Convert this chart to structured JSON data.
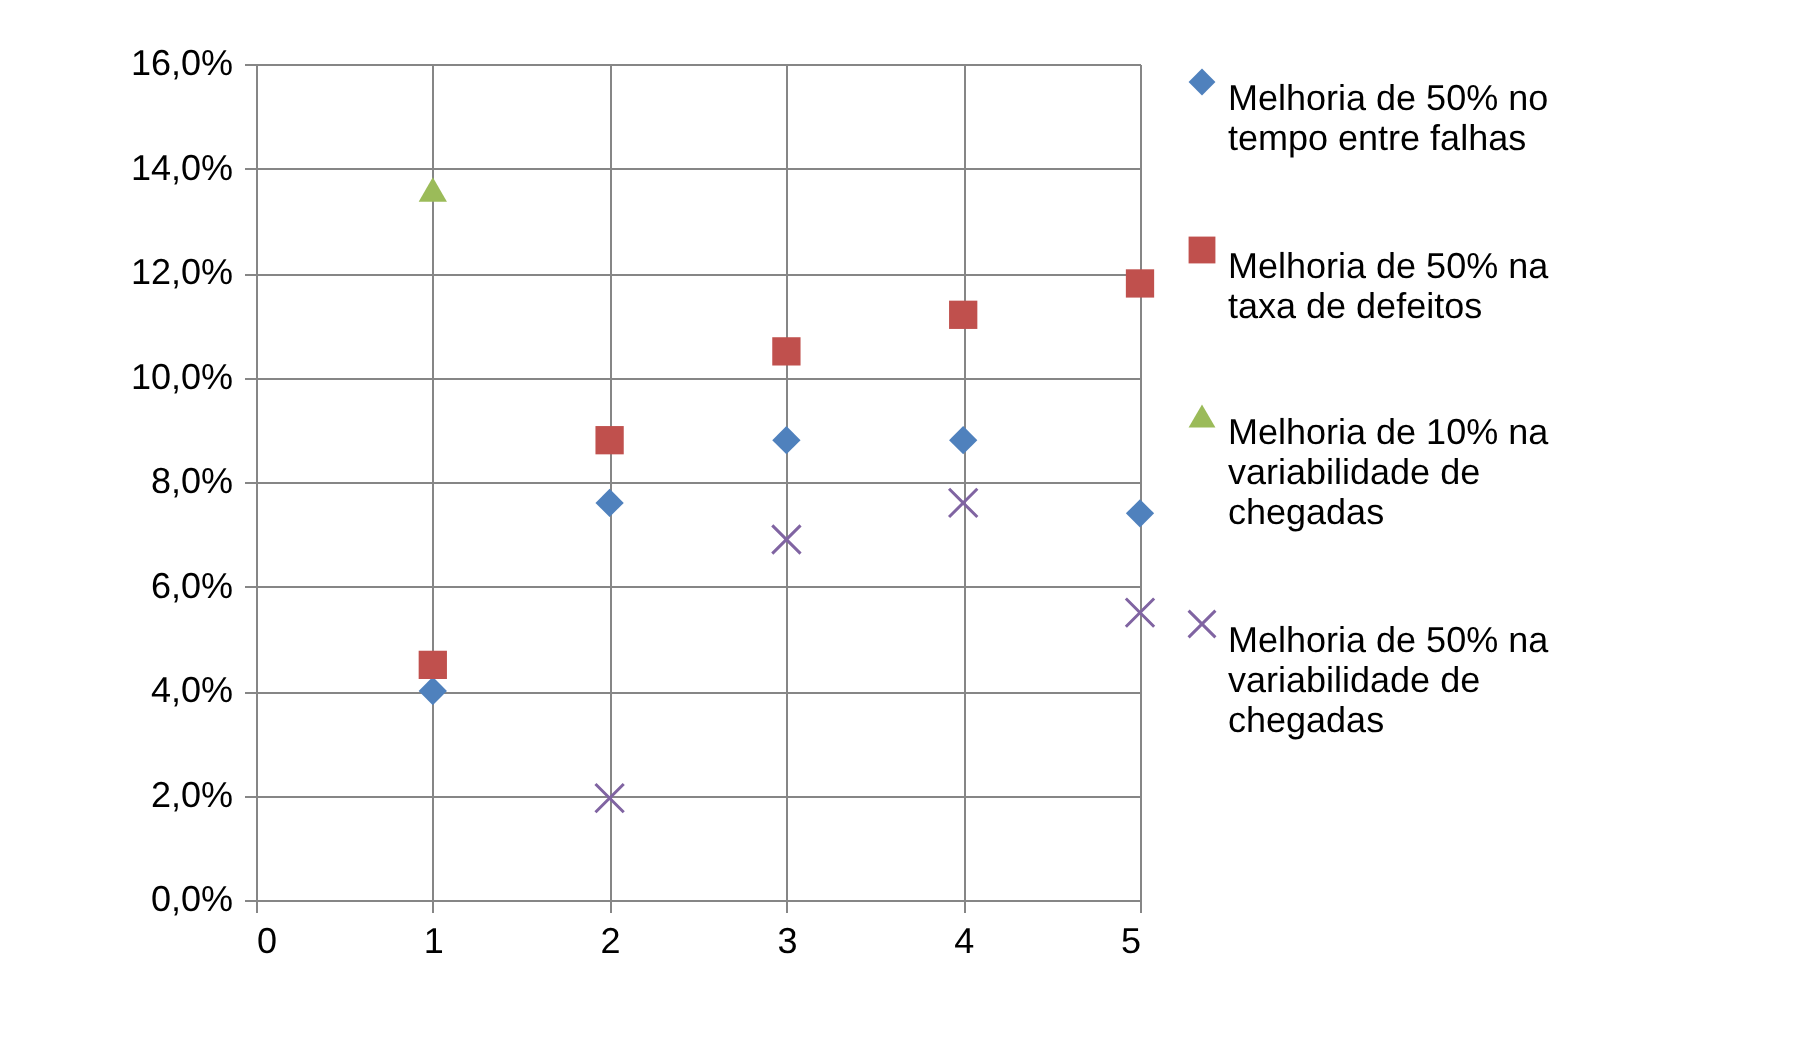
{
  "chart_data": {
    "type": "scatter",
    "x": [
      1,
      2,
      3,
      4,
      5
    ],
    "xlim": [
      0,
      5
    ],
    "xticks": [
      0,
      1,
      2,
      3,
      4,
      5
    ],
    "ylim": [
      0,
      16
    ],
    "yticks": [
      {
        "value": 0,
        "label": "0,0%"
      },
      {
        "value": 2,
        "label": "2,0%"
      },
      {
        "value": 4,
        "label": "4,0%"
      },
      {
        "value": 6,
        "label": "6,0%"
      },
      {
        "value": 8,
        "label": "8,0%"
      },
      {
        "value": 10,
        "label": "10,0%"
      },
      {
        "value": 12,
        "label": "12,0%"
      },
      {
        "value": 14,
        "label": "14,0%"
      },
      {
        "value": 16,
        "label": "16,0%"
      }
    ],
    "grid": true,
    "legend": "right",
    "series": [
      {
        "name": "Melhoria de 50% no tempo entre falhas",
        "color": "#4f81bd",
        "marker": "diamond",
        "values": [
          4.0,
          7.6,
          8.8,
          8.8,
          7.4
        ]
      },
      {
        "name": "Melhoria de 50% na taxa de defeitos",
        "color": "#c0504d",
        "marker": "square",
        "values": [
          4.5,
          8.8,
          10.5,
          11.2,
          11.8
        ]
      },
      {
        "name": "Melhoria de 10% na variabilidade de chegadas",
        "color": "#9bbb59",
        "marker": "triangle",
        "values": [
          13.6,
          null,
          null,
          null,
          null
        ]
      },
      {
        "name": "Melhoria de 50% na variabilidade de chegadas",
        "color": "#8064a2",
        "marker": "cross",
        "values": [
          null,
          1.95,
          6.9,
          7.6,
          5.5
        ]
      }
    ]
  }
}
